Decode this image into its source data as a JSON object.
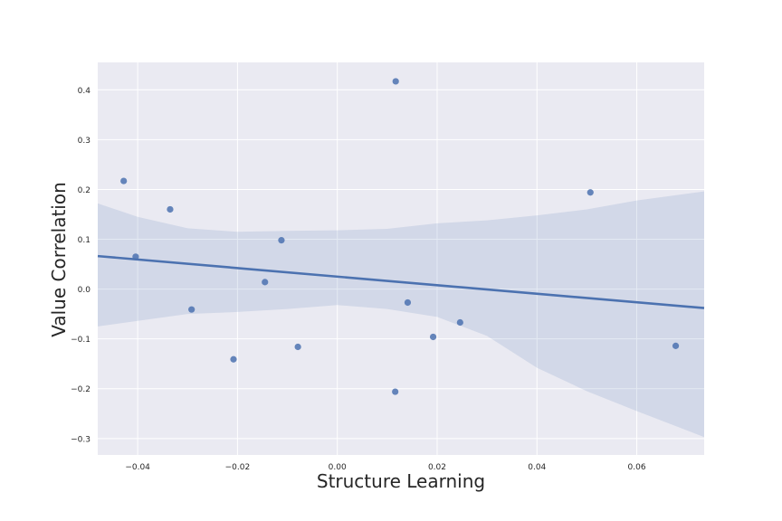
{
  "chart_data": {
    "type": "scatter",
    "title": "",
    "xlabel": "Structure Learning",
    "ylabel": "Value Correlation",
    "xlim": [
      -0.048,
      0.0735
    ],
    "ylim": [
      -0.333,
      0.455
    ],
    "xticks": [
      -0.04,
      -0.02,
      0.0,
      0.02,
      0.04,
      0.06
    ],
    "xtick_labels": [
      "−0.04",
      "−0.02",
      "0.00",
      "0.02",
      "0.04",
      "0.06"
    ],
    "yticks": [
      -0.3,
      -0.2,
      -0.1,
      0.0,
      0.1,
      0.2,
      0.3,
      0.4
    ],
    "ytick_labels": [
      "−0.3",
      "−0.2",
      "−0.1",
      "0.0",
      "0.1",
      "0.2",
      "0.3",
      "0.4"
    ],
    "grid": true,
    "colors": {
      "background": "#eaeaf2",
      "grid": "#ffffff",
      "points": "#4c72b0",
      "line": "#4c72b0",
      "band": "#4c72b0"
    },
    "points": [
      {
        "x": -0.0428,
        "y": 0.217
      },
      {
        "x": -0.0404,
        "y": 0.065
      },
      {
        "x": -0.0335,
        "y": 0.16
      },
      {
        "x": -0.0292,
        "y": -0.041
      },
      {
        "x": -0.0208,
        "y": -0.141
      },
      {
        "x": -0.0145,
        "y": 0.014
      },
      {
        "x": -0.0112,
        "y": 0.098
      },
      {
        "x": -0.0079,
        "y": -0.116
      },
      {
        "x": 0.0117,
        "y": 0.417
      },
      {
        "x": 0.0116,
        "y": -0.206
      },
      {
        "x": 0.0141,
        "y": -0.027
      },
      {
        "x": 0.0192,
        "y": -0.096
      },
      {
        "x": 0.0246,
        "y": -0.067
      },
      {
        "x": 0.0507,
        "y": 0.194
      },
      {
        "x": 0.0678,
        "y": -0.114
      }
    ],
    "regression": {
      "intercept": 0.025,
      "slope": -0.859
    },
    "confidence_band": {
      "x": [
        -0.048,
        -0.04,
        -0.03,
        -0.02,
        -0.01,
        0.0,
        0.01,
        0.02,
        0.03,
        0.04,
        0.05,
        0.06,
        0.0735
      ],
      "lower": [
        -0.075,
        -0.064,
        -0.05,
        -0.046,
        -0.04,
        -0.032,
        -0.04,
        -0.056,
        -0.094,
        -0.158,
        -0.205,
        -0.245,
        -0.297
      ],
      "upper": [
        0.172,
        0.145,
        0.122,
        0.115,
        0.117,
        0.118,
        0.121,
        0.132,
        0.138,
        0.148,
        0.16,
        0.178,
        0.196
      ]
    }
  }
}
